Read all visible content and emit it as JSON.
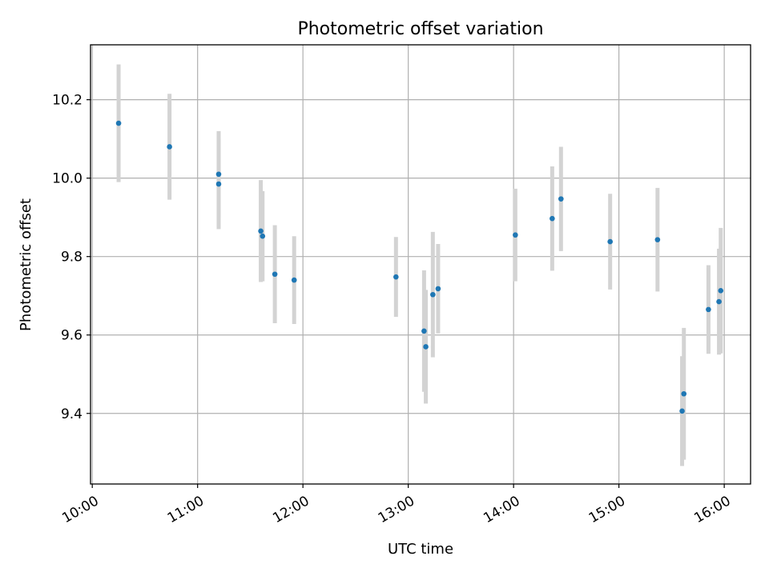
{
  "chart_data": {
    "type": "scatter",
    "title": "Photometric offset variation",
    "xlabel": "UTC time",
    "ylabel": "Photometric offset",
    "x_unit": "UTC time (HH:MM)",
    "xlim": [
      "09:59",
      "16:15"
    ],
    "ylim": [
      9.22,
      10.34
    ],
    "xticks": [
      "10:00",
      "11:00",
      "12:00",
      "13:00",
      "14:00",
      "15:00",
      "16:00"
    ],
    "yticks": [
      9.4,
      9.6,
      9.8,
      10.0,
      10.2
    ],
    "grid": true,
    "colors": {
      "points": "#1f77b4",
      "error_bars": "#d3d3d3"
    },
    "points": [
      {
        "x": "10:15",
        "y": 10.14,
        "err": 0.15
      },
      {
        "x": "10:44",
        "y": 10.08,
        "err": 0.135
      },
      {
        "x": "11:12",
        "y": 10.01,
        "err": 0.11
      },
      {
        "x": "11:12",
        "y": 9.985,
        "err": 0.115
      },
      {
        "x": "11:36",
        "y": 9.865,
        "err": 0.13
      },
      {
        "x": "11:37",
        "y": 9.852,
        "err": 0.115
      },
      {
        "x": "11:44",
        "y": 9.755,
        "err": 0.125
      },
      {
        "x": "11:55",
        "y": 9.74,
        "err": 0.112
      },
      {
        "x": "12:53",
        "y": 9.748,
        "err": 0.102
      },
      {
        "x": "13:09",
        "y": 9.61,
        "err": 0.155
      },
      {
        "x": "13:10",
        "y": 9.57,
        "err": 0.145
      },
      {
        "x": "13:14",
        "y": 9.703,
        "err": 0.16
      },
      {
        "x": "13:17",
        "y": 9.718,
        "err": 0.114
      },
      {
        "x": "14:01",
        "y": 9.855,
        "err": 0.118
      },
      {
        "x": "14:22",
        "y": 9.897,
        "err": 0.133
      },
      {
        "x": "14:27",
        "y": 9.947,
        "err": 0.133
      },
      {
        "x": "14:55",
        "y": 9.838,
        "err": 0.122
      },
      {
        "x": "15:22",
        "y": 9.843,
        "err": 0.132
      },
      {
        "x": "15:36",
        "y": 9.406,
        "err": 0.14
      },
      {
        "x": "15:37",
        "y": 9.45,
        "err": 0.168
      },
      {
        "x": "15:51",
        "y": 9.665,
        "err": 0.113
      },
      {
        "x": "15:57",
        "y": 9.685,
        "err": 0.135
      },
      {
        "x": "15:58",
        "y": 9.713,
        "err": 0.16
      }
    ]
  }
}
